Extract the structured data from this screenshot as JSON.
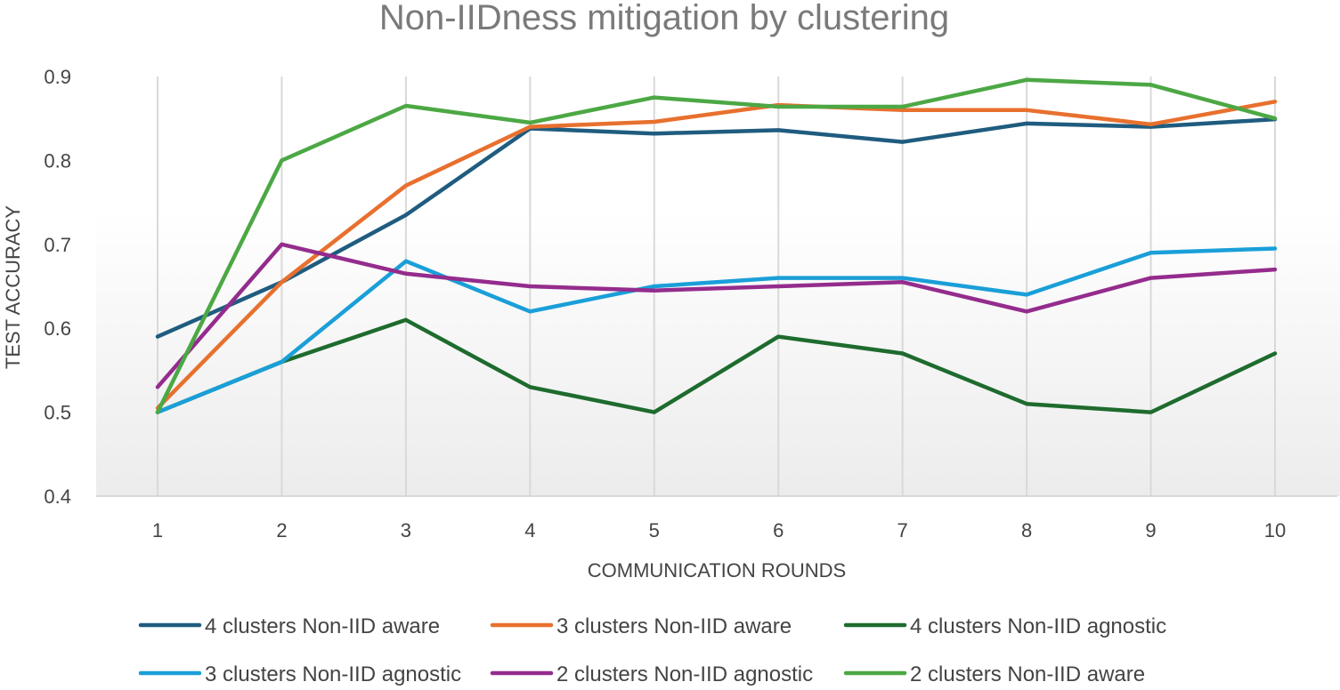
{
  "chart_data": {
    "type": "line",
    "title": "Non-IIDness mitigation by clustering",
    "xlabel": "COMMUNICATION ROUNDS",
    "ylabel": "TEST ACCURACY",
    "categories": [
      "1",
      "2",
      "3",
      "4",
      "5",
      "6",
      "7",
      "8",
      "9",
      "10"
    ],
    "ylim": [
      0.4,
      0.9
    ],
    "yticks": [
      "0.4",
      "0.5",
      "0.6",
      "0.7",
      "0.8",
      "0.9"
    ],
    "grid": "vertical",
    "legend_position": "bottom",
    "series": [
      {
        "name": "4 clusters Non-IID aware",
        "color": "#1F5C7F",
        "values": [
          0.59,
          0.655,
          0.735,
          0.838,
          0.832,
          0.836,
          0.822,
          0.844,
          0.84,
          0.849
        ]
      },
      {
        "name": "3 clusters Non-IID aware",
        "color": "#E8702E",
        "values": [
          0.505,
          0.655,
          0.77,
          0.84,
          0.846,
          0.866,
          0.86,
          0.86,
          0.843,
          0.87
        ]
      },
      {
        "name": "4 clusters Non-IID agnostic",
        "color": "#1E6B2E",
        "values": [
          0.5,
          0.56,
          0.61,
          0.53,
          0.5,
          0.59,
          0.57,
          0.51,
          0.5,
          0.57
        ]
      },
      {
        "name": "3 clusters Non-IID agnostic",
        "color": "#1A9FD8",
        "values": [
          0.5,
          0.56,
          0.68,
          0.62,
          0.65,
          0.66,
          0.66,
          0.64,
          0.69,
          0.695
        ]
      },
      {
        "name": "2 clusters Non-IID agnostic",
        "color": "#942C8D",
        "values": [
          0.53,
          0.7,
          0.665,
          0.65,
          0.645,
          0.65,
          0.655,
          0.62,
          0.66,
          0.67
        ]
      },
      {
        "name": "2 clusters Non-IID aware",
        "color": "#4CA844",
        "values": [
          0.5,
          0.8,
          0.865,
          0.845,
          0.875,
          0.864,
          0.864,
          0.896,
          0.89,
          0.85
        ]
      }
    ]
  }
}
